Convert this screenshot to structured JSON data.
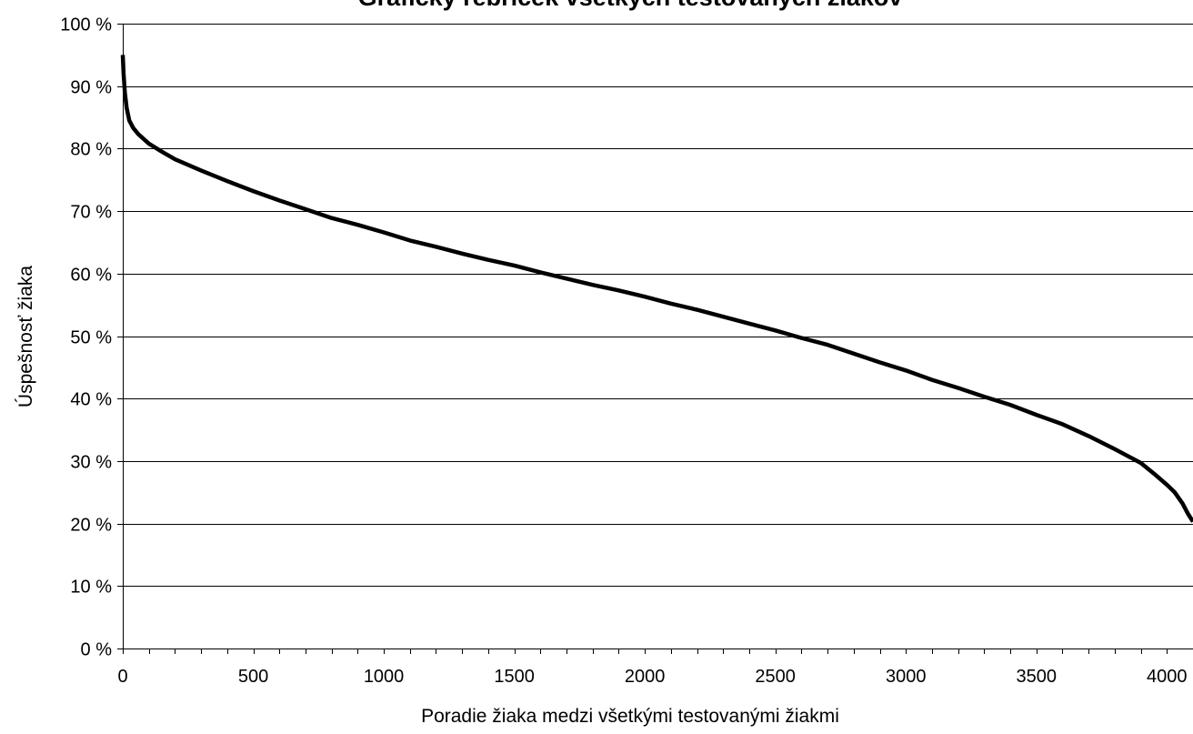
{
  "chart_data": {
    "type": "line",
    "title": "Grafický rebríček všetkých testovaných žiakov",
    "xlabel": "Poradie žiaka medzi všetkými testovanými žiakmi",
    "ylabel": "Úspešnosť žiaka",
    "xlim": [
      0,
      4100
    ],
    "ylim": [
      0,
      100
    ],
    "x_ticks": [
      0,
      500,
      1000,
      1500,
      2000,
      2500,
      3000,
      3500,
      4000
    ],
    "x_tick_labels": [
      "0",
      "500",
      "1000",
      "1500",
      "2000",
      "2500",
      "3000",
      "3500",
      "4000"
    ],
    "y_ticks": [
      0,
      10,
      20,
      30,
      40,
      50,
      60,
      70,
      80,
      90,
      100
    ],
    "y_tick_labels": [
      "0 %",
      "10 %",
      "20 %",
      "30 %",
      "40 %",
      "50 %",
      "60 %",
      "70 %",
      "80 %",
      "90 %",
      "100 %"
    ],
    "grid": "horizontal",
    "legend": "none",
    "series": [
      {
        "color": "#000000",
        "x": [
          0,
          3,
          8,
          15,
          25,
          40,
          60,
          100,
          150,
          200,
          300,
          400,
          500,
          600,
          700,
          800,
          900,
          1000,
          1100,
          1200,
          1300,
          1400,
          1500,
          1600,
          1700,
          1800,
          1900,
          2000,
          2100,
          2200,
          2300,
          2400,
          2500,
          2600,
          2700,
          2800,
          2900,
          3000,
          3100,
          3200,
          3300,
          3400,
          3500,
          3600,
          3700,
          3800,
          3900,
          3950,
          4000,
          4030,
          4060,
          4080,
          4100
        ],
        "y": [
          95,
          92,
          89,
          86.5,
          84.5,
          83.3,
          82.3,
          80.8,
          79.5,
          78.3,
          76.5,
          74.8,
          73.2,
          71.7,
          70.3,
          68.9,
          67.8,
          66.6,
          65.3,
          64.3,
          63.2,
          62.2,
          61.3,
          60.2,
          59.2,
          58.2,
          57.3,
          56.3,
          55.2,
          54.2,
          53.1,
          52.0,
          50.9,
          49.7,
          48.6,
          47.2,
          45.8,
          44.5,
          43.0,
          41.7,
          40.3,
          39.0,
          37.4,
          35.9,
          34.0,
          31.9,
          29.7,
          28.0,
          26.2,
          25.0,
          23.2,
          21.6,
          20.3
        ]
      }
    ]
  }
}
